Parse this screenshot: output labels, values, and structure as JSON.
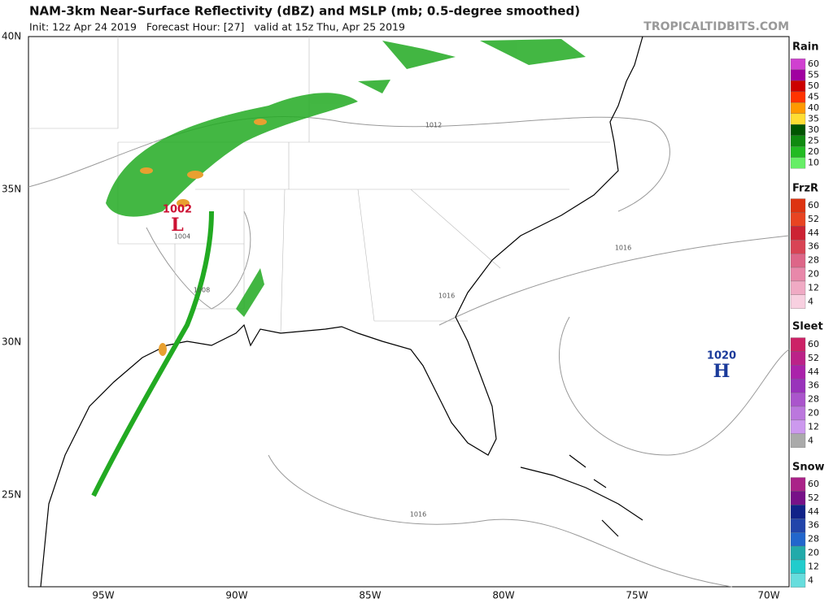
{
  "header": {
    "title": "NAM-3km Near-Surface Reflectivity (dBZ) and MSLP (mb; 0.5-degree smoothed)",
    "subtitle": "Init: 12z Apr 24 2019   Forecast Hour: [27]   valid at 15z Thu, Apr 25 2019",
    "watermark": "TROPICALTIDBITS.COM"
  },
  "map": {
    "lat_labels": [
      "40N",
      "35N",
      "30N",
      "25N"
    ],
    "lon_labels": [
      "95W",
      "90W",
      "85W",
      "80W",
      "75W",
      "70W"
    ],
    "isobar_labels": [
      "1012",
      "1016",
      "1016",
      "1016",
      "1008",
      "1004"
    ],
    "centers": [
      {
        "pressure": "1002",
        "type": "L",
        "color": "#cc1133"
      },
      {
        "pressure": "1020",
        "type": "H",
        "color": "#1a3a9a"
      }
    ]
  },
  "legend": [
    {
      "name": "Rain",
      "labels": [
        "60",
        "55",
        "50",
        "45",
        "40",
        "35",
        "30",
        "25",
        "20",
        "10"
      ],
      "colors": [
        "#d040d0",
        "#a000a0",
        "#cc0000",
        "#ff3300",
        "#ff9900",
        "#ffdd33",
        "#005500",
        "#108a10",
        "#22bb22",
        "#66ee66"
      ]
    },
    {
      "name": "FrzR",
      "labels": [
        "60",
        "52",
        "44",
        "36",
        "28",
        "20",
        "12",
        "4"
      ],
      "colors": [
        "#dd3311",
        "#e84422",
        "#cc2233",
        "#d84455",
        "#dd6688",
        "#e888aa",
        "#f0aac4",
        "#f8d0e0"
      ]
    },
    {
      "name": "Sleet",
      "labels": [
        "60",
        "52",
        "44",
        "36",
        "28",
        "20",
        "12",
        "4"
      ],
      "colors": [
        "#cc2266",
        "#bb2288",
        "#aa22aa",
        "#9933bb",
        "#aa55cc",
        "#bb77dd",
        "#cc99ee",
        "#aaaaaa"
      ]
    },
    {
      "name": "Snow",
      "labels": [
        "60",
        "52",
        "44",
        "36",
        "28",
        "20",
        "12",
        "4"
      ],
      "colors": [
        "#aa2288",
        "#771188",
        "#112288",
        "#2244aa",
        "#2266cc",
        "#22aaaa",
        "#22cccc",
        "#66dddd"
      ]
    }
  ]
}
